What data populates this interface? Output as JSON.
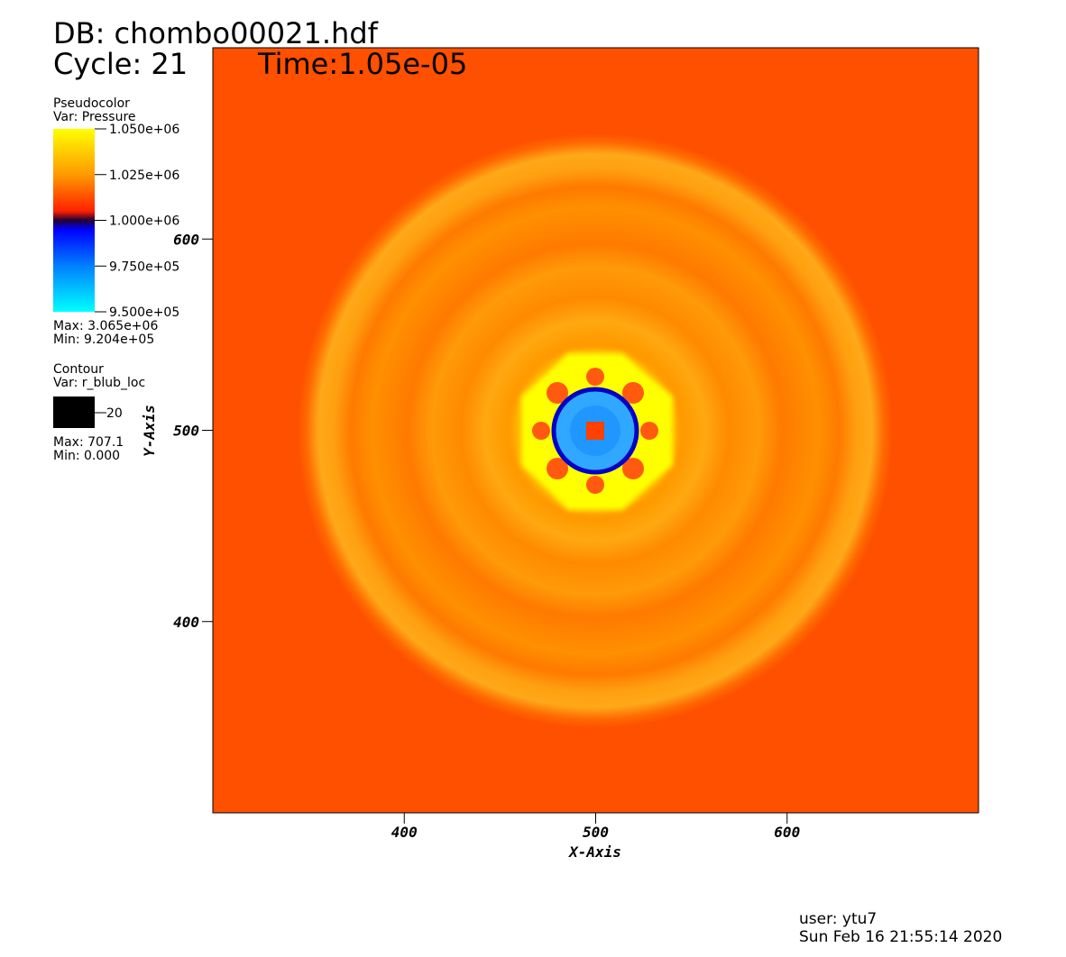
{
  "chart_data": {
    "type": "pseudocolor",
    "db": "DB: chombo00021.hdf",
    "cycle": "Cycle: 21",
    "time": "Time:1.05e-05",
    "xlabel": "X-Axis",
    "ylabel": "Y-Axis",
    "xlim": [
      300,
      700
    ],
    "ylim": [
      300,
      700
    ],
    "xticks": [
      400,
      500,
      600
    ],
    "yticks": [
      400,
      500,
      600
    ],
    "pseudocolor_legend": {
      "title": "Pseudocolor",
      "var": "Var: Pressure",
      "ticks": [
        {
          "value": 1050000,
          "label": "1.050e+06"
        },
        {
          "value": 1025000,
          "label": "1.025e+06"
        },
        {
          "value": 1000000,
          "label": "1.000e+06"
        },
        {
          "value": 975000,
          "label": "9.750e+05"
        },
        {
          "value": 950000,
          "label": "9.500e+05"
        }
      ],
      "max": "Max:  3.065e+06",
      "min": "Min:  9.204e+05"
    },
    "contour_legend": {
      "title": "Contour",
      "var": "Var: r_blub_loc",
      "level": 20,
      "color": "#000000",
      "max": "Max: 707.1",
      "min": "Min: 0.000"
    },
    "user": "user: ytu7",
    "date": "Sun Feb 16 21:55:14 2020"
  }
}
